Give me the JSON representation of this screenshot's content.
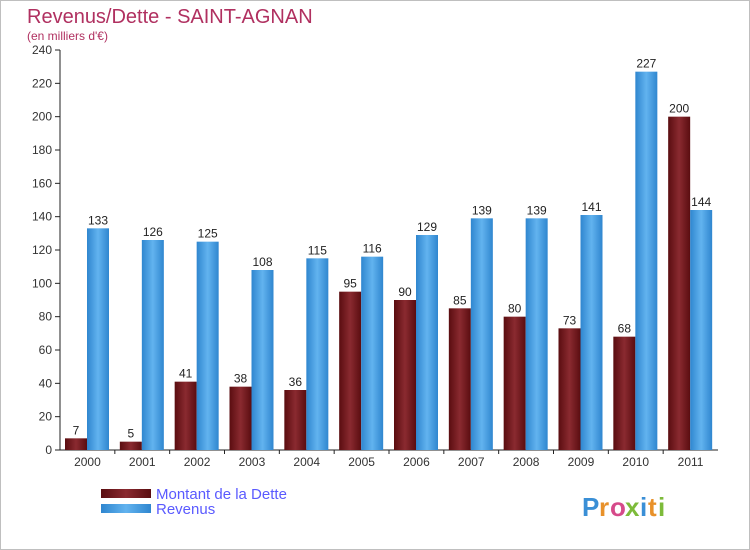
{
  "chart_data": {
    "type": "bar",
    "title": "Revenus/Dette - SAINT-AGNAN",
    "subtitle": "(en milliers d'€)",
    "categories": [
      "2000",
      "2001",
      "2002",
      "2003",
      "2004",
      "2005",
      "2006",
      "2007",
      "2008",
      "2009",
      "2010",
      "2011"
    ],
    "series": [
      {
        "name": "Montant de la Dette",
        "values": [
          7,
          5,
          41,
          38,
          36,
          95,
          90,
          85,
          80,
          73,
          68,
          200
        ],
        "color": "#7a1a1e"
      },
      {
        "name": "Revenus",
        "values": [
          133,
          126,
          125,
          108,
          115,
          116,
          129,
          139,
          139,
          141,
          227,
          144
        ],
        "color": "#4aa3e6"
      }
    ],
    "ylim": [
      0,
      240
    ],
    "yticks": [
      0,
      20,
      40,
      60,
      80,
      100,
      120,
      140,
      160,
      180,
      200,
      220,
      240
    ],
    "grid": false,
    "legend_position": "bottom-left"
  },
  "logo": {
    "text": "Proxiti",
    "letters": [
      {
        "ch": "P",
        "color": "#3a8fd6"
      },
      {
        "ch": "r",
        "color": "#e8912a"
      },
      {
        "ch": "o",
        "color": "#d64a8a"
      },
      {
        "ch": "x",
        "color": "#7dbb3a"
      },
      {
        "ch": "i",
        "color": "#3a8fd6"
      },
      {
        "ch": "t",
        "color": "#e8912a"
      },
      {
        "ch": "i",
        "color": "#7dbb3a"
      }
    ]
  }
}
